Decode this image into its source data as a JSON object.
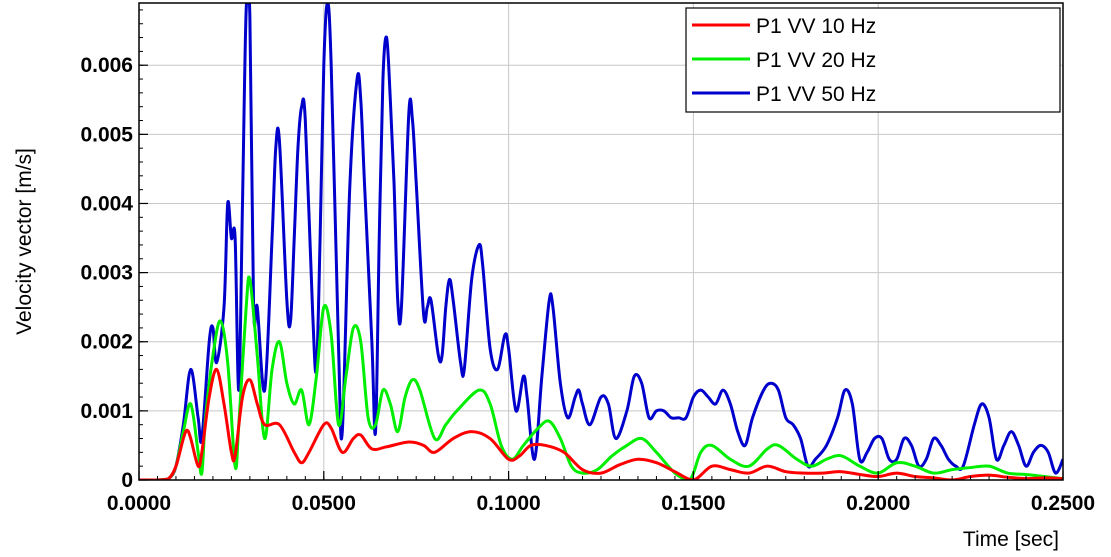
{
  "chart_data": {
    "type": "line",
    "title": "",
    "xlabel": "Time [sec]",
    "ylabel": "Velocity vector [m/s]",
    "xlim": [
      0,
      0.25
    ],
    "ylim": [
      0,
      0.0069
    ],
    "x_ticks": [
      0.0,
      0.05,
      0.1,
      0.15,
      0.2,
      0.25
    ],
    "x_tick_labels": [
      "0.0000",
      "0.0500",
      "0.1000",
      "0.1500",
      "0.2000",
      "0.2500"
    ],
    "y_ticks": [
      0,
      0.001,
      0.002,
      0.003,
      0.004,
      0.005,
      0.006
    ],
    "y_tick_labels": [
      "0",
      "0.001",
      "0.002",
      "0.003",
      "0.004",
      "0.005",
      "0.006"
    ],
    "grid": true,
    "legend_position": "top-right",
    "series": [
      {
        "name": "P1 VV 10 Hz",
        "color": "#ff0000",
        "points": [
          [
            0,
            0
          ],
          [
            0.005,
            0
          ],
          [
            0.008,
            2e-05
          ],
          [
            0.01,
            0.0002
          ],
          [
            0.012,
            0.0006
          ],
          [
            0.013,
            0.00072
          ],
          [
            0.014,
            0.0006
          ],
          [
            0.016,
            0.0002
          ],
          [
            0.017,
            0.0004
          ],
          [
            0.019,
            0.0012
          ],
          [
            0.021,
            0.0016
          ],
          [
            0.023,
            0.0011
          ],
          [
            0.025,
            0.0004
          ],
          [
            0.026,
            0.00035
          ],
          [
            0.028,
            0.0012
          ],
          [
            0.03,
            0.00145
          ],
          [
            0.032,
            0.0011
          ],
          [
            0.034,
            0.0008
          ],
          [
            0.038,
            0.0008
          ],
          [
            0.042,
            0.0004
          ],
          [
            0.044,
            0.00025
          ],
          [
            0.046,
            0.0004
          ],
          [
            0.05,
            0.0008
          ],
          [
            0.052,
            0.00075
          ],
          [
            0.055,
            0.0004
          ],
          [
            0.058,
            0.0006
          ],
          [
            0.06,
            0.00065
          ],
          [
            0.063,
            0.00045
          ],
          [
            0.067,
            0.00048
          ],
          [
            0.073,
            0.00055
          ],
          [
            0.077,
            0.0005
          ],
          [
            0.08,
            0.0004
          ],
          [
            0.085,
            0.0006
          ],
          [
            0.09,
            0.0007
          ],
          [
            0.095,
            0.0006
          ],
          [
            0.1,
            0.0003
          ],
          [
            0.103,
            0.00035
          ],
          [
            0.106,
            0.0005
          ],
          [
            0.11,
            0.0005
          ],
          [
            0.115,
            0.0004
          ],
          [
            0.12,
            0.00015
          ],
          [
            0.125,
            0.0001
          ],
          [
            0.13,
            0.00022
          ],
          [
            0.135,
            0.0003
          ],
          [
            0.14,
            0.00025
          ],
          [
            0.145,
            0.00012
          ],
          [
            0.15,
            0.0
          ],
          [
            0.155,
            0.0002
          ],
          [
            0.16,
            0.00015
          ],
          [
            0.165,
            0.0001
          ],
          [
            0.17,
            0.0002
          ],
          [
            0.175,
            0.00012
          ],
          [
            0.18,
            0.0001
          ],
          [
            0.185,
            0.0001
          ],
          [
            0.19,
            0.00012
          ],
          [
            0.195,
            8e-05
          ],
          [
            0.2,
            5e-05
          ],
          [
            0.205,
            0.0001
          ],
          [
            0.21,
            5e-05
          ],
          [
            0.215,
            3e-05
          ],
          [
            0.22,
            0.0
          ],
          [
            0.225,
            5e-05
          ],
          [
            0.23,
            7e-05
          ],
          [
            0.235,
            4e-05
          ],
          [
            0.24,
            2e-05
          ],
          [
            0.245,
            3e-05
          ],
          [
            0.25,
            2e-05
          ]
        ]
      },
      {
        "name": "P1 VV 20 Hz",
        "color": "#00ee00",
        "points": [
          [
            0,
            0
          ],
          [
            0.005,
            0
          ],
          [
            0.008,
            2e-05
          ],
          [
            0.01,
            0.0002
          ],
          [
            0.012,
            0.0007
          ],
          [
            0.014,
            0.0011
          ],
          [
            0.016,
            0.0004
          ],
          [
            0.017,
            0.0001
          ],
          [
            0.018,
            0.0009
          ],
          [
            0.02,
            0.0018
          ],
          [
            0.022,
            0.0023
          ],
          [
            0.024,
            0.0017
          ],
          [
            0.026,
            0.0002
          ],
          [
            0.027,
            0.0008
          ],
          [
            0.029,
            0.0025
          ],
          [
            0.03,
            0.0029
          ],
          [
            0.032,
            0.0018
          ],
          [
            0.034,
            0.0006
          ],
          [
            0.036,
            0.0016
          ],
          [
            0.038,
            0.002
          ],
          [
            0.04,
            0.0014
          ],
          [
            0.042,
            0.0011
          ],
          [
            0.044,
            0.0013
          ],
          [
            0.046,
            0.0008
          ],
          [
            0.048,
            0.0015
          ],
          [
            0.05,
            0.0025
          ],
          [
            0.052,
            0.0021
          ],
          [
            0.054,
            0.0008
          ],
          [
            0.056,
            0.0015
          ],
          [
            0.058,
            0.0022
          ],
          [
            0.06,
            0.002
          ],
          [
            0.062,
            0.0009
          ],
          [
            0.064,
            0.0008
          ],
          [
            0.066,
            0.0013
          ],
          [
            0.068,
            0.0011
          ],
          [
            0.07,
            0.0007
          ],
          [
            0.072,
            0.0012
          ],
          [
            0.074,
            0.00145
          ],
          [
            0.076,
            0.0013
          ],
          [
            0.08,
            0.0006
          ],
          [
            0.083,
            0.0008
          ],
          [
            0.086,
            0.001
          ],
          [
            0.092,
            0.0013
          ],
          [
            0.095,
            0.0011
          ],
          [
            0.098,
            0.0005
          ],
          [
            0.101,
            0.0003
          ],
          [
            0.104,
            0.0005
          ],
          [
            0.108,
            0.00075
          ],
          [
            0.111,
            0.00085
          ],
          [
            0.114,
            0.0006
          ],
          [
            0.117,
            0.0002
          ],
          [
            0.12,
            0.0001
          ],
          [
            0.124,
            0.00015
          ],
          [
            0.128,
            0.00035
          ],
          [
            0.132,
            0.0005
          ],
          [
            0.136,
            0.0006
          ],
          [
            0.14,
            0.0004
          ],
          [
            0.145,
            0.0001
          ],
          [
            0.149,
            0.0
          ],
          [
            0.152,
            0.0004
          ],
          [
            0.155,
            0.0005
          ],
          [
            0.16,
            0.0003
          ],
          [
            0.165,
            0.0002
          ],
          [
            0.17,
            0.00045
          ],
          [
            0.173,
            0.0005
          ],
          [
            0.178,
            0.0003
          ],
          [
            0.182,
            0.0002
          ],
          [
            0.186,
            0.0003
          ],
          [
            0.19,
            0.00035
          ],
          [
            0.195,
            0.0002
          ],
          [
            0.2,
            0.0001
          ],
          [
            0.205,
            0.00025
          ],
          [
            0.21,
            0.0002
          ],
          [
            0.215,
            0.0001
          ],
          [
            0.22,
            0.00015
          ],
          [
            0.225,
            0.00018
          ],
          [
            0.23,
            0.0002
          ],
          [
            0.235,
            0.0001
          ],
          [
            0.24,
            8e-05
          ],
          [
            0.245,
            5e-05
          ],
          [
            0.25,
            2e-05
          ]
        ]
      },
      {
        "name": "P1 VV 50 Hz",
        "color": "#0000cc",
        "points": [
          [
            0,
            0
          ],
          [
            0.005,
            0
          ],
          [
            0.008,
            2e-05
          ],
          [
            0.01,
            0.0002
          ],
          [
            0.012,
            0.0008
          ],
          [
            0.014,
            0.0016
          ],
          [
            0.016,
            0.0009
          ],
          [
            0.017,
            0.0006
          ],
          [
            0.019,
            0.002
          ],
          [
            0.02,
            0.0022
          ],
          [
            0.021,
            0.0017
          ],
          [
            0.023,
            0.0025
          ],
          [
            0.024,
            0.004
          ],
          [
            0.025,
            0.0035
          ],
          [
            0.026,
            0.0035
          ],
          [
            0.027,
            0.0013
          ],
          [
            0.028,
            0.004
          ],
          [
            0.029,
            0.0068
          ],
          [
            0.03,
            0.0067
          ],
          [
            0.031,
            0.0025
          ],
          [
            0.032,
            0.0025
          ],
          [
            0.034,
            0.0013
          ],
          [
            0.036,
            0.0035
          ],
          [
            0.037,
            0.0048
          ],
          [
            0.038,
            0.0049
          ],
          [
            0.04,
            0.0026
          ],
          [
            0.041,
            0.0023
          ],
          [
            0.042,
            0.0035
          ],
          [
            0.043,
            0.0048
          ],
          [
            0.044,
            0.0054
          ],
          [
            0.045,
            0.0052
          ],
          [
            0.047,
            0.0024
          ],
          [
            0.048,
            0.0016
          ],
          [
            0.049,
            0.0035
          ],
          [
            0.05,
            0.006
          ],
          [
            0.051,
            0.0069
          ],
          [
            0.052,
            0.006
          ],
          [
            0.054,
            0.0019
          ],
          [
            0.055,
            0.0007
          ],
          [
            0.057,
            0.0042
          ],
          [
            0.059,
            0.0058
          ],
          [
            0.06,
            0.0055
          ],
          [
            0.061,
            0.0043
          ],
          [
            0.063,
            0.002
          ],
          [
            0.064,
            0.0007
          ],
          [
            0.065,
            0.0035
          ],
          [
            0.066,
            0.0058
          ],
          [
            0.067,
            0.0064
          ],
          [
            0.068,
            0.0055
          ],
          [
            0.069,
            0.0043
          ],
          [
            0.07,
            0.0026
          ],
          [
            0.071,
            0.0025
          ],
          [
            0.073,
            0.0053
          ],
          [
            0.074,
            0.0052
          ],
          [
            0.075,
            0.0043
          ],
          [
            0.077,
            0.0024
          ],
          [
            0.078,
            0.0025
          ],
          [
            0.079,
            0.0026
          ],
          [
            0.081,
            0.0018
          ],
          [
            0.082,
            0.0018
          ],
          [
            0.083,
            0.0025
          ],
          [
            0.084,
            0.0029
          ],
          [
            0.085,
            0.0026
          ],
          [
            0.087,
            0.0017
          ],
          [
            0.088,
            0.0016
          ],
          [
            0.09,
            0.0029
          ],
          [
            0.092,
            0.0034
          ],
          [
            0.093,
            0.0031
          ],
          [
            0.095,
            0.0019
          ],
          [
            0.097,
            0.0016
          ],
          [
            0.099,
            0.0021
          ],
          [
            0.1,
            0.0019
          ],
          [
            0.102,
            0.001
          ],
          [
            0.104,
            0.0015
          ],
          [
            0.105,
            0.0012
          ],
          [
            0.107,
            0.0003
          ],
          [
            0.109,
            0.0015
          ],
          [
            0.111,
            0.0026
          ],
          [
            0.112,
            0.0025
          ],
          [
            0.114,
            0.0014
          ],
          [
            0.116,
            0.0009
          ],
          [
            0.118,
            0.0012
          ],
          [
            0.119,
            0.0013
          ],
          [
            0.12,
            0.0011
          ],
          [
            0.122,
            0.0008
          ],
          [
            0.125,
            0.0012
          ],
          [
            0.127,
            0.0011
          ],
          [
            0.129,
            0.0006
          ],
          [
            0.132,
            0.001
          ],
          [
            0.134,
            0.0015
          ],
          [
            0.136,
            0.0014
          ],
          [
            0.138,
            0.0009
          ],
          [
            0.14,
            0.001
          ],
          [
            0.142,
            0.001
          ],
          [
            0.144,
            0.0009
          ],
          [
            0.146,
            0.0009
          ],
          [
            0.148,
            0.0009
          ],
          [
            0.15,
            0.0012
          ],
          [
            0.152,
            0.0013
          ],
          [
            0.154,
            0.0012
          ],
          [
            0.156,
            0.0011
          ],
          [
            0.158,
            0.0013
          ],
          [
            0.16,
            0.0011
          ],
          [
            0.162,
            0.0007
          ],
          [
            0.164,
            0.0005
          ],
          [
            0.166,
            0.0009
          ],
          [
            0.169,
            0.0013
          ],
          [
            0.171,
            0.0014
          ],
          [
            0.173,
            0.0013
          ],
          [
            0.175,
            0.0009
          ],
          [
            0.177,
            0.0008
          ],
          [
            0.179,
            0.0006
          ],
          [
            0.181,
            0.0002
          ],
          [
            0.183,
            0.0003
          ],
          [
            0.186,
            0.0005
          ],
          [
            0.189,
            0.0009
          ],
          [
            0.191,
            0.0013
          ],
          [
            0.193,
            0.0011
          ],
          [
            0.195,
            0.0003
          ],
          [
            0.197,
            0.0004
          ],
          [
            0.199,
            0.0006
          ],
          [
            0.201,
            0.0006
          ],
          [
            0.203,
            0.0003
          ],
          [
            0.205,
            0.0003
          ],
          [
            0.207,
            0.0006
          ],
          [
            0.209,
            0.0005
          ],
          [
            0.211,
            0.0002
          ],
          [
            0.213,
            0.0003
          ],
          [
            0.215,
            0.0006
          ],
          [
            0.217,
            0.0005
          ],
          [
            0.219,
            0.0003
          ],
          [
            0.221,
            0.0002
          ],
          [
            0.223,
            0.0002
          ],
          [
            0.226,
            0.0008
          ],
          [
            0.228,
            0.0011
          ],
          [
            0.23,
            0.0009
          ],
          [
            0.232,
            0.0003
          ],
          [
            0.234,
            0.0005
          ],
          [
            0.236,
            0.0007
          ],
          [
            0.238,
            0.0005
          ],
          [
            0.24,
            0.0002
          ],
          [
            0.242,
            0.0004
          ],
          [
            0.244,
            0.0005
          ],
          [
            0.246,
            0.0004
          ],
          [
            0.248,
            0.0001
          ],
          [
            0.25,
            0.0003
          ]
        ]
      }
    ]
  }
}
